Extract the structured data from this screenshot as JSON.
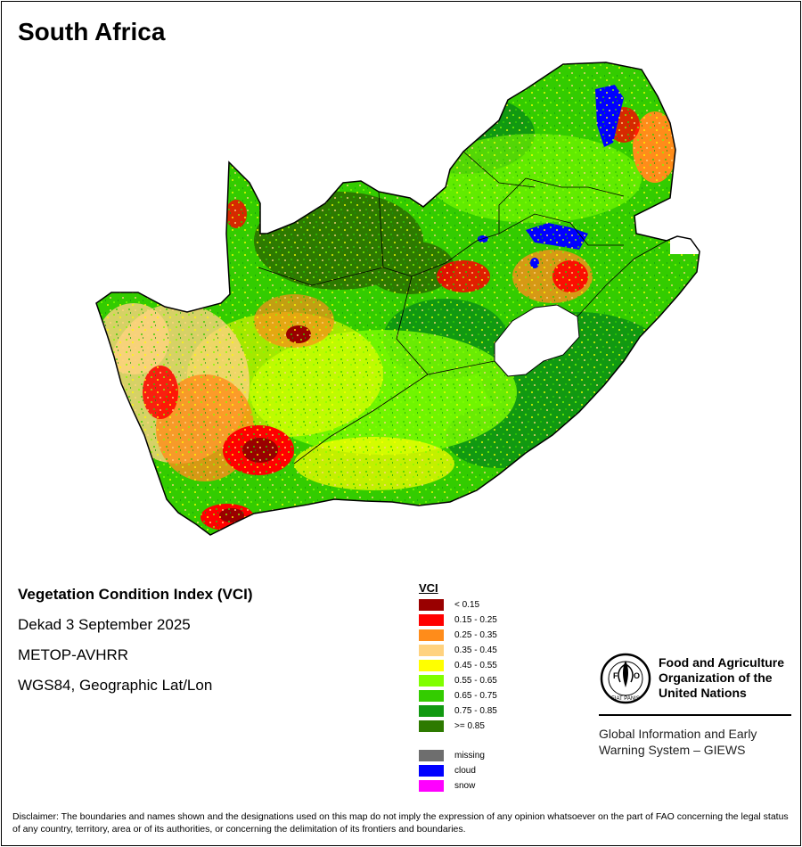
{
  "map": {
    "title": "South Africa"
  },
  "info": {
    "heading": "Vegetation Condition Index (VCI)",
    "date": "Dekad 3 September 2025",
    "sensor": "METOP-AVHRR",
    "projection": "WGS84, Geographic Lat/Lon"
  },
  "legend": {
    "title": "VCI",
    "classes": [
      {
        "label": "< 0.15",
        "color": "#990000"
      },
      {
        "label": "0.15 - 0.25",
        "color": "#ff0000"
      },
      {
        "label": "0.25 - 0.35",
        "color": "#ff8c1a"
      },
      {
        "label": "0.35 - 0.45",
        "color": "#ffd27f"
      },
      {
        "label": "0.45 - 0.55",
        "color": "#ffff00"
      },
      {
        "label": "0.55 - 0.65",
        "color": "#80ff00"
      },
      {
        "label": "0.65 - 0.75",
        "color": "#33cc00"
      },
      {
        "label": "0.75 - 0.85",
        "color": "#119911"
      },
      {
        "label": ">= 0.85",
        "color": "#2d7a00"
      }
    ],
    "special": [
      {
        "label": "missing",
        "color": "#6e6e6e"
      },
      {
        "label": "cloud",
        "color": "#0000ff"
      },
      {
        "label": "snow",
        "color": "#ff00ff"
      }
    ]
  },
  "organization": {
    "logo_text": "FAO",
    "logo_motto": "FIAT PANIS",
    "name_line1": "Food and Agriculture",
    "name_line2": "Organization of the",
    "name_line3": "United Nations",
    "system_line1": "Global Information and Early",
    "system_line2": "Warning System – GIEWS"
  },
  "disclaimer": "Disclaimer: The boundaries and names shown and the designations used on this map do not imply the expression of any opinion whatsoever on the part of FAO concerning the legal status of any country, territory, area or of its authorities, or concerning the delimitation of its frontiers and boundaries."
}
